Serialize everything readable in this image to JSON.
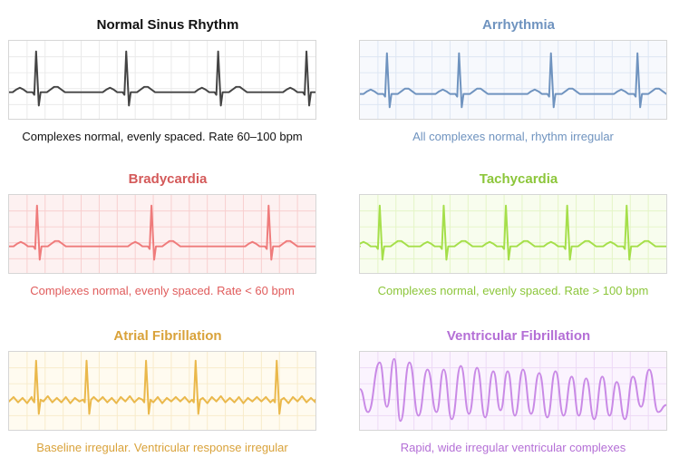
{
  "panels": [
    {
      "title": "Normal Sinus Rhythm",
      "caption": "Complexes normal, evenly spaced. Rate 60–100 bpm",
      "color": "#444444",
      "title_color": "#111111",
      "caption_color": "#111111",
      "grid_color": "#eaeaea",
      "background": "#ffffff",
      "rhythm": "normal"
    },
    {
      "title": "Arrhythmia",
      "caption": "All complexes normal, rhythm irregular",
      "color": "#6f93bf",
      "title_color": "#6f93bf",
      "caption_color": "#6f93bf",
      "grid_color": "#dde6f3",
      "background": "#f7f9fd",
      "rhythm": "irregular"
    },
    {
      "title": "Bradycardia",
      "caption": "Complexes normal, evenly spaced. Rate < 60 bpm",
      "color": "#ef7b7b",
      "title_color": "#d45a5a",
      "caption_color": "#e05c5c",
      "grid_color": "#f8cfcf",
      "background": "#fdf1f1",
      "rhythm": "slow"
    },
    {
      "title": "Tachycardia",
      "caption": "Complexes normal, evenly spaced. Rate > 100 bpm",
      "color": "#a5df4a",
      "title_color": "#8cc63a",
      "caption_color": "#8cc63a",
      "grid_color": "#e4f5c6",
      "background": "#f8fdee",
      "rhythm": "fast"
    },
    {
      "title": "Atrial Fibrillation",
      "caption": "Baseline irregular. Ventricular response irregular",
      "color": "#eab84b",
      "title_color": "#d9a23a",
      "caption_color": "#d9a23a",
      "grid_color": "#f8ebcb",
      "background": "#fffbf0",
      "rhythm": "afib"
    },
    {
      "title": "Ventricular Fibrillation",
      "caption": "Rapid, wide irregular ventricular complexes",
      "color": "#c98ae6",
      "title_color": "#b46fd6",
      "caption_color": "#b46fd6",
      "grid_color": "#edd9f6",
      "background": "#fbf4fe",
      "rhythm": "vfib"
    }
  ]
}
